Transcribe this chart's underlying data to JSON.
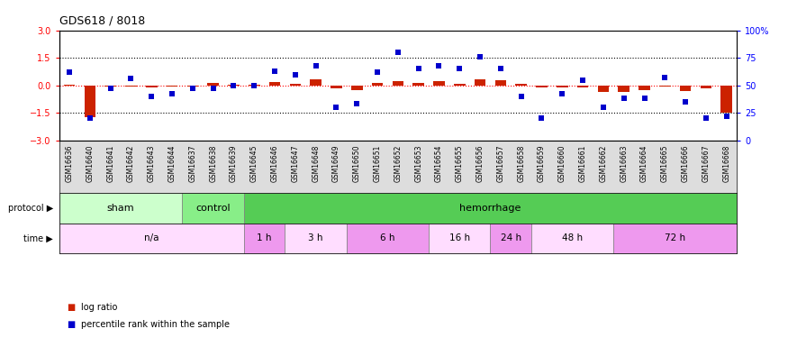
{
  "title": "GDS618 / 8018",
  "samples": [
    "GSM16636",
    "GSM16640",
    "GSM16641",
    "GSM16642",
    "GSM16643",
    "GSM16644",
    "GSM16637",
    "GSM16638",
    "GSM16639",
    "GSM16645",
    "GSM16646",
    "GSM16647",
    "GSM16648",
    "GSM16649",
    "GSM16650",
    "GSM16651",
    "GSM16652",
    "GSM16653",
    "GSM16654",
    "GSM16655",
    "GSM16656",
    "GSM16657",
    "GSM16658",
    "GSM16659",
    "GSM16660",
    "GSM16661",
    "GSM16662",
    "GSM16663",
    "GSM16664",
    "GSM16665",
    "GSM16666",
    "GSM16667",
    "GSM16668"
  ],
  "log_ratio": [
    0.05,
    -1.75,
    -0.05,
    -0.08,
    -0.12,
    -0.05,
    -0.05,
    0.12,
    0.05,
    0.05,
    0.2,
    0.1,
    0.32,
    -0.18,
    -0.25,
    0.15,
    0.25,
    0.15,
    0.22,
    0.1,
    0.32,
    0.3,
    0.1,
    -0.1,
    -0.1,
    -0.1,
    -0.35,
    -0.38,
    -0.28,
    -0.05,
    -0.3,
    -0.15,
    -1.5
  ],
  "percentile": [
    62,
    20,
    47,
    56,
    40,
    42,
    47,
    47,
    50,
    50,
    63,
    60,
    68,
    30,
    33,
    62,
    80,
    65,
    68,
    65,
    76,
    65,
    40,
    20,
    42,
    55,
    30,
    38,
    38,
    57,
    35,
    20,
    22
  ],
  "protocol_groups": [
    {
      "label": "sham",
      "start": 0,
      "end": 6,
      "color": "#ccffcc"
    },
    {
      "label": "control",
      "start": 6,
      "end": 9,
      "color": "#88ee88"
    },
    {
      "label": "hemorrhage",
      "start": 9,
      "end": 33,
      "color": "#55cc55"
    }
  ],
  "time_groups": [
    {
      "label": "n/a",
      "start": 0,
      "end": 9,
      "color": "#ffddff"
    },
    {
      "label": "1 h",
      "start": 9,
      "end": 11,
      "color": "#ee99ee"
    },
    {
      "label": "3 h",
      "start": 11,
      "end": 14,
      "color": "#ffddff"
    },
    {
      "label": "6 h",
      "start": 14,
      "end": 18,
      "color": "#ee99ee"
    },
    {
      "label": "16 h",
      "start": 18,
      "end": 21,
      "color": "#ffddff"
    },
    {
      "label": "24 h",
      "start": 21,
      "end": 23,
      "color": "#ee99ee"
    },
    {
      "label": "48 h",
      "start": 23,
      "end": 27,
      "color": "#ffddff"
    },
    {
      "label": "72 h",
      "start": 27,
      "end": 33,
      "color": "#ee99ee"
    }
  ],
  "ylim_left": [
    -3,
    3
  ],
  "ylim_right": [
    0,
    100
  ],
  "yticks_left": [
    -3,
    -1.5,
    0,
    1.5,
    3
  ],
  "yticks_right": [
    0,
    25,
    50,
    75,
    100
  ],
  "hlines_dotted": [
    1.5,
    -1.5
  ],
  "bar_color": "#cc2200",
  "dot_color": "#0000cc",
  "bar_width": 0.55,
  "dot_size": 18,
  "label_bg_color": "#dddddd"
}
